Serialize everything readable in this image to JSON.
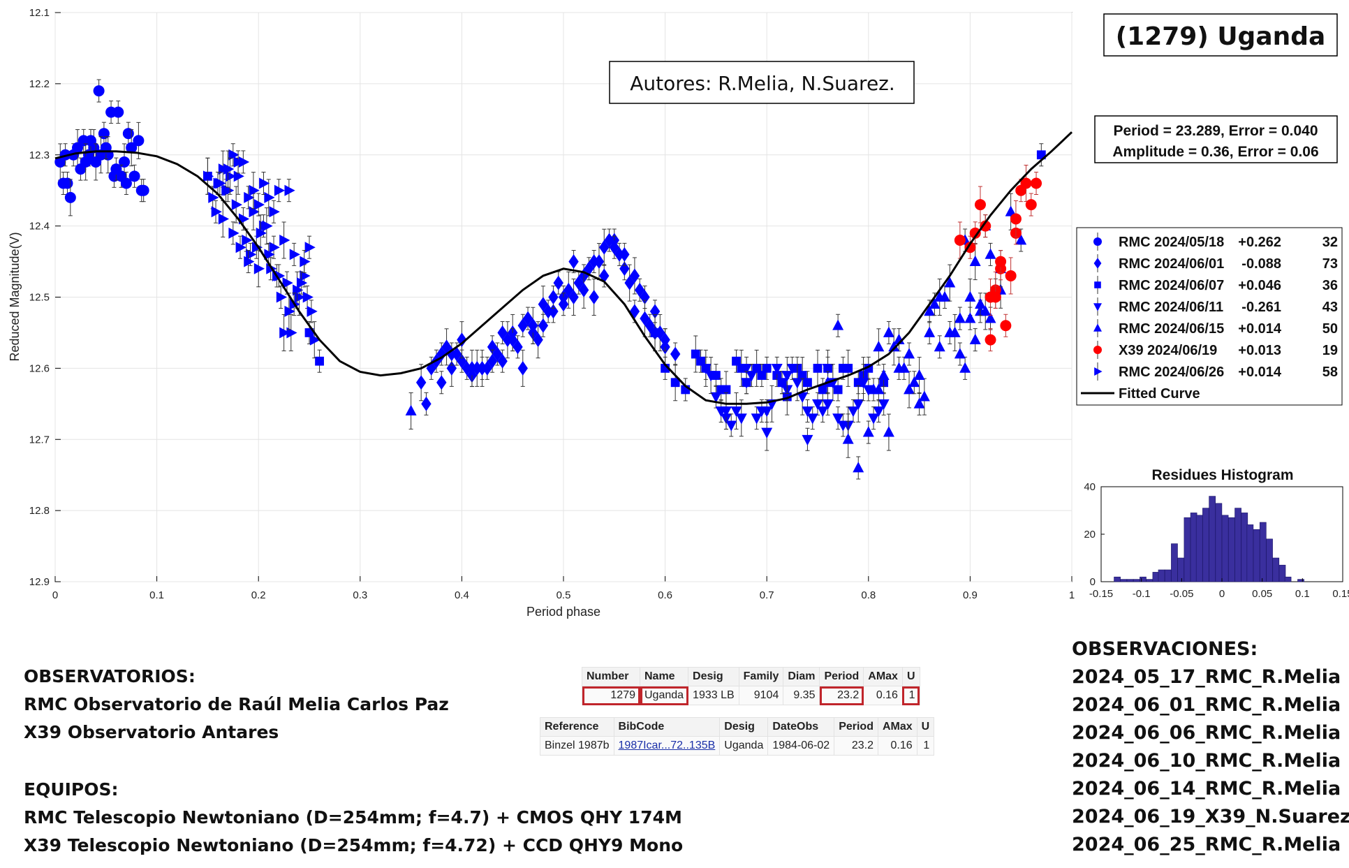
{
  "title": "(1279) Uganda",
  "authors": "Autores: R.Melia, N.Suarez.",
  "period_box": {
    "line1": "Period =  23.289, Error = 0.040",
    "line2": "Amplitude = 0.36, Error = 0.06"
  },
  "legend": [
    {
      "label": "RMC 2024/05/18",
      "offset": "+0.262",
      "count": "32",
      "marker": "circle",
      "color": "#0000ff"
    },
    {
      "label": "RMC 2024/06/01",
      "offset": "-0.088",
      "count": "73",
      "marker": "diamond",
      "color": "#0000ff"
    },
    {
      "label": "RMC 2024/06/07",
      "offset": "+0.046",
      "count": "36",
      "marker": "square",
      "color": "#0000ff"
    },
    {
      "label": "RMC 2024/06/11",
      "offset": "-0.261",
      "count": "43",
      "marker": "triangle-down",
      "color": "#0000ff"
    },
    {
      "label": "RMC 2024/06/15",
      "offset": "+0.014",
      "count": "50",
      "marker": "triangle-up",
      "color": "#0000ff"
    },
    {
      "label": "X39 2024/06/19",
      "offset": "+0.013",
      "count": "19",
      "marker": "circle",
      "color": "#ff0000"
    },
    {
      "label": "RMC 2024/06/26",
      "offset": "+0.014",
      "count": "58",
      "marker": "triangle-right",
      "color": "#0000ff"
    },
    {
      "label": "Fitted Curve",
      "offset": "",
      "count": "",
      "marker": "line",
      "color": "#000000"
    }
  ],
  "chart_data": [
    {
      "type": "scatter",
      "title": "",
      "xlabel": "Period phase",
      "ylabel": "Reduced Magnitude(V)",
      "xlim": [
        0,
        1
      ],
      "ylim": [
        12.1,
        12.9
      ],
      "y_reversed": true,
      "grid": true,
      "legend_position": "right",
      "x_ticks": [
        "0",
        "0.1",
        "0.2",
        "0.3",
        "0.4",
        "0.5",
        "0.6",
        "0.7",
        "0.8",
        "0.9",
        "1"
      ],
      "y_ticks": [
        "12.1",
        "12.2",
        "12.3",
        "12.4",
        "12.5",
        "12.6",
        "12.7",
        "12.8",
        "12.9"
      ],
      "fitted_curve": {
        "name": "Fitted Curve",
        "x": [
          0,
          0.02,
          0.04,
          0.06,
          0.08,
          0.1,
          0.12,
          0.14,
          0.16,
          0.18,
          0.2,
          0.22,
          0.24,
          0.26,
          0.28,
          0.3,
          0.32,
          0.34,
          0.36,
          0.38,
          0.4,
          0.42,
          0.44,
          0.46,
          0.48,
          0.5,
          0.52,
          0.54,
          0.56,
          0.58,
          0.6,
          0.62,
          0.64,
          0.66,
          0.68,
          0.7,
          0.72,
          0.74,
          0.76,
          0.78,
          0.8,
          0.82,
          0.84,
          0.86,
          0.88,
          0.9,
          0.92,
          0.94,
          0.96,
          0.98,
          1.0
        ],
        "y": [
          12.305,
          12.298,
          12.295,
          12.295,
          12.297,
          12.302,
          12.313,
          12.33,
          12.355,
          12.39,
          12.43,
          12.475,
          12.52,
          12.56,
          12.59,
          12.605,
          12.61,
          12.607,
          12.6,
          12.585,
          12.565,
          12.54,
          12.515,
          12.49,
          12.47,
          12.46,
          12.465,
          12.478,
          12.51,
          12.555,
          12.595,
          12.625,
          12.645,
          12.65,
          12.65,
          12.648,
          12.642,
          12.63,
          12.62,
          12.61,
          12.598,
          12.58,
          12.55,
          12.51,
          12.47,
          12.425,
          12.385,
          12.35,
          12.32,
          12.295,
          12.268
        ]
      },
      "series": [
        {
          "name": "RMC 2024/05/18",
          "x": [
            0.005,
            0.012,
            0.018,
            0.022,
            0.028,
            0.033,
            0.038,
            0.043,
            0.048,
            0.052,
            0.058,
            0.062,
            0.068,
            0.072,
            0.078,
            0.082,
            0.087,
            0.008,
            0.015,
            0.025,
            0.035,
            0.045,
            0.055,
            0.065,
            0.075,
            0.085,
            0.01,
            0.03,
            0.05,
            0.07,
            0.04,
            0.06
          ],
          "y": [
            12.31,
            12.34,
            12.3,
            12.29,
            12.28,
            12.3,
            12.29,
            12.21,
            12.27,
            12.3,
            12.33,
            12.24,
            12.31,
            12.27,
            12.33,
            12.28,
            12.35,
            12.34,
            12.36,
            12.32,
            12.28,
            12.3,
            12.24,
            12.33,
            12.29,
            12.35,
            12.3,
            12.31,
            12.29,
            12.34,
            12.31,
            12.32
          ]
        },
        {
          "name": "RMC 2024/06/01",
          "x": [
            0.36,
            0.37,
            0.38,
            0.39,
            0.4,
            0.41,
            0.42,
            0.43,
            0.44,
            0.45,
            0.46,
            0.47,
            0.48,
            0.49,
            0.5,
            0.51,
            0.52,
            0.53,
            0.54,
            0.55,
            0.56,
            0.57,
            0.58,
            0.59,
            0.6,
            0.365,
            0.375,
            0.385,
            0.395,
            0.405,
            0.415,
            0.425,
            0.435,
            0.445,
            0.455,
            0.465,
            0.475,
            0.485,
            0.495,
            0.505,
            0.515,
            0.525,
            0.535,
            0.545,
            0.555,
            0.565,
            0.575,
            0.585,
            0.595,
            0.61,
            0.38,
            0.4,
            0.42,
            0.44,
            0.46,
            0.48,
            0.5,
            0.52,
            0.54,
            0.56,
            0.58,
            0.6,
            0.39,
            0.41,
            0.43,
            0.45,
            0.47,
            0.49,
            0.51,
            0.53,
            0.55,
            0.57,
            0.59
          ],
          "y": [
            12.62,
            12.6,
            12.58,
            12.6,
            12.59,
            12.61,
            12.6,
            12.57,
            12.59,
            12.55,
            12.54,
            12.55,
            12.51,
            12.52,
            12.5,
            12.5,
            12.47,
            12.45,
            12.43,
            12.42,
            12.46,
            12.47,
            12.5,
            12.52,
            12.57,
            12.65,
            12.59,
            12.57,
            12.58,
            12.6,
            12.6,
            12.6,
            12.58,
            12.56,
            12.57,
            12.53,
            12.56,
            12.52,
            12.48,
            12.49,
            12.48,
            12.46,
            12.45,
            12.42,
            12.44,
            12.48,
            12.49,
            12.54,
            12.55,
            12.58,
            12.62,
            12.56,
            12.6,
            12.55,
            12.6,
            12.54,
            12.51,
            12.49,
            12.47,
            12.44,
            12.53,
            12.56,
            12.58,
            12.6,
            12.59,
            12.56,
            12.54,
            12.5,
            12.45,
            12.5,
            12.43,
            12.52,
            12.55
          ]
        },
        {
          "name": "RMC 2024/06/07",
          "x": [
            0.15,
            0.25,
            0.26,
            0.59,
            0.6,
            0.62,
            0.63,
            0.64,
            0.65,
            0.66,
            0.67,
            0.68,
            0.69,
            0.7,
            0.71,
            0.72,
            0.73,
            0.74,
            0.75,
            0.76,
            0.77,
            0.78,
            0.79,
            0.8,
            0.61,
            0.635,
            0.655,
            0.675,
            0.695,
            0.715,
            0.735,
            0.755,
            0.775,
            0.795,
            0.815,
            0.97
          ],
          "y": [
            12.33,
            12.55,
            12.59,
            12.55,
            12.6,
            12.63,
            12.58,
            12.6,
            12.61,
            12.63,
            12.59,
            12.62,
            12.6,
            12.6,
            12.61,
            12.64,
            12.6,
            12.62,
            12.6,
            12.6,
            12.63,
            12.6,
            12.62,
            12.6,
            12.62,
            12.59,
            12.63,
            12.6,
            12.61,
            12.62,
            12.61,
            12.63,
            12.6,
            12.61,
            12.62,
            12.3
          ]
        },
        {
          "name": "RMC 2024/06/11",
          "x": [
            0.64,
            0.65,
            0.66,
            0.67,
            0.68,
            0.69,
            0.7,
            0.71,
            0.72,
            0.73,
            0.74,
            0.75,
            0.76,
            0.77,
            0.78,
            0.79,
            0.8,
            0.81,
            0.645,
            0.655,
            0.665,
            0.675,
            0.685,
            0.695,
            0.705,
            0.715,
            0.725,
            0.735,
            0.745,
            0.755,
            0.765,
            0.775,
            0.785,
            0.795,
            0.805,
            0.815,
            0.66,
            0.68,
            0.7,
            0.72,
            0.74,
            0.76,
            0.78
          ],
          "y": [
            12.6,
            12.64,
            12.67,
            12.66,
            12.6,
            12.67,
            12.69,
            12.6,
            12.63,
            12.62,
            12.7,
            12.65,
            12.6,
            12.67,
            12.68,
            12.65,
            12.63,
            12.66,
            12.61,
            12.66,
            12.68,
            12.67,
            12.61,
            12.66,
            12.65,
            12.62,
            12.6,
            12.64,
            12.67,
            12.66,
            12.62,
            12.68,
            12.66,
            12.62,
            12.67,
            12.65,
            12.66,
            12.62,
            12.66,
            12.61,
            12.66,
            12.65,
            12.68
          ]
        },
        {
          "name": "RMC 2024/06/15",
          "x": [
            0.35,
            0.77,
            0.8,
            0.81,
            0.82,
            0.83,
            0.84,
            0.85,
            0.86,
            0.87,
            0.88,
            0.89,
            0.9,
            0.91,
            0.92,
            0.93,
            0.79,
            0.815,
            0.825,
            0.835,
            0.845,
            0.855,
            0.865,
            0.875,
            0.885,
            0.895,
            0.905,
            0.915,
            0.925,
            0.805,
            0.82,
            0.84,
            0.86,
            0.88,
            0.9,
            0.92,
            0.94,
            0.89,
            0.91,
            0.93,
            0.95,
            0.87,
            0.85,
            0.83,
            0.81,
            0.78,
            0.76,
            0.895,
            0.905,
            0.915
          ],
          "y": [
            12.66,
            12.54,
            12.69,
            12.57,
            12.55,
            12.56,
            12.63,
            12.65,
            12.52,
            12.5,
            12.55,
            12.53,
            12.5,
            12.52,
            12.53,
            12.49,
            12.74,
            12.61,
            12.57,
            12.6,
            12.62,
            12.64,
            12.51,
            12.5,
            12.55,
            12.6,
            12.56,
            12.52,
            12.49,
            12.63,
            12.69,
            12.58,
            12.55,
            12.48,
            12.53,
            12.44,
            12.38,
            12.58,
            12.51,
            12.46,
            12.42,
            12.57,
            12.61,
            12.6,
            12.63,
            12.7,
            12.62,
            12.42,
            12.45,
            12.4
          ]
        },
        {
          "name": "X39 2024/06/19",
          "x": [
            0.89,
            0.9,
            0.905,
            0.91,
            0.915,
            0.92,
            0.925,
            0.93,
            0.935,
            0.94,
            0.945,
            0.95,
            0.955,
            0.96,
            0.965,
            0.92,
            0.93,
            0.925,
            0.945
          ],
          "y": [
            12.42,
            12.43,
            12.41,
            12.37,
            12.4,
            12.56,
            12.49,
            12.46,
            12.54,
            12.47,
            12.41,
            12.35,
            12.34,
            12.37,
            12.34,
            12.5,
            12.45,
            12.5,
            12.39
          ]
        },
        {
          "name": "RMC 2024/06/26",
          "x": [
            0.15,
            0.155,
            0.16,
            0.165,
            0.17,
            0.175,
            0.18,
            0.185,
            0.19,
            0.195,
            0.2,
            0.205,
            0.21,
            0.215,
            0.22,
            0.225,
            0.23,
            0.235,
            0.24,
            0.245,
            0.25,
            0.255,
            0.158,
            0.168,
            0.178,
            0.188,
            0.198,
            0.208,
            0.218,
            0.228,
            0.238,
            0.248,
            0.162,
            0.172,
            0.182,
            0.192,
            0.202,
            0.212,
            0.222,
            0.232,
            0.242,
            0.252,
            0.165,
            0.175,
            0.185,
            0.195,
            0.205,
            0.215,
            0.225,
            0.235,
            0.245,
            0.17,
            0.18,
            0.19,
            0.2,
            0.21,
            0.22,
            0.23
          ],
          "y": [
            12.33,
            12.36,
            12.34,
            12.32,
            12.35,
            12.3,
            12.33,
            12.31,
            12.36,
            12.38,
            12.37,
            12.4,
            12.36,
            12.38,
            12.35,
            12.42,
            12.35,
            12.44,
            12.5,
            12.47,
            12.43,
            12.56,
            12.38,
            12.35,
            12.37,
            12.42,
            12.43,
            12.4,
            12.47,
            12.48,
            12.49,
            12.5,
            12.34,
            12.33,
            12.43,
            12.44,
            12.41,
            12.46,
            12.5,
            12.55,
            12.48,
            12.52,
            12.39,
            12.41,
            12.39,
            12.35,
            12.34,
            12.43,
            12.55,
            12.51,
            12.45,
            12.32,
            12.31,
            12.45,
            12.46,
            12.44,
            12.47,
            12.52
          ]
        }
      ]
    },
    {
      "type": "bar",
      "title": "Residues Histogram",
      "xlim": [
        -0.15,
        0.15
      ],
      "ylim": [
        0,
        40
      ],
      "x_ticks": [
        "-0.15",
        "-0.1",
        "-0.05",
        "0",
        "0.05",
        "0.1",
        "0.15"
      ],
      "y_ticks": [
        "0",
        "20",
        "40"
      ],
      "bar_color": "#3a2f9e",
      "bin_width": 0.00785,
      "bin_centers": [
        -0.13,
        -0.122,
        -0.114,
        -0.106,
        -0.098,
        -0.09,
        -0.082,
        -0.075,
        -0.067,
        -0.059,
        -0.051,
        -0.043,
        -0.035,
        -0.028,
        -0.02,
        -0.012,
        -0.004,
        0.004,
        0.012,
        0.02,
        0.028,
        0.035,
        0.043,
        0.051,
        0.059,
        0.067,
        0.075,
        0.082,
        0.09,
        0.098,
        0.106,
        0.114
      ],
      "values": [
        2,
        1,
        1,
        1,
        2,
        1,
        4,
        5,
        5,
        16,
        10,
        27,
        29,
        28,
        31,
        36,
        33,
        28,
        27,
        31,
        29,
        24,
        22,
        25,
        18,
        10,
        7,
        2,
        0,
        1,
        0,
        0
      ]
    }
  ],
  "left_text": {
    "obs_title": "OBSERVATORIOS:",
    "obs1": "RMC Observatorio de Raúl Melia Carlos Paz",
    "obs2": "X39 Observatorio Antares",
    "eq_title": "EQUIPOS:",
    "eq1": "RMC Telescopio Newtoniano (D=254mm; f=4.7) + CMOS QHY 174M",
    "eq2": "X39 Telescopio Newtoniano (D=254mm; f=4.72) + CCD QHY9 Mono"
  },
  "right_text": {
    "title": "OBSERVACIONES:",
    "items": [
      "2024_05_17_RMC_R.Melia",
      "2024_06_01_RMC_R.Melia",
      "2024_06_06_RMC_R.Melia",
      "2024_06_10_RMC_R.Melia",
      "2024_06_14_RMC_R.Melia",
      "2024_06_19_X39_N.Suarez",
      "2024_06_25_RMC_R.Melia"
    ]
  },
  "table1": {
    "headers": [
      "Number",
      "Name",
      "Desig",
      "Family",
      "Diam",
      "Period",
      "AMax",
      "U"
    ],
    "row": [
      "1279",
      "Uganda",
      "1933 LB",
      "9104",
      "9.35",
      "23.2",
      "0.16",
      "1"
    ]
  },
  "table2": {
    "headers": [
      "Reference",
      "BibCode",
      "Desig",
      "DateObs",
      "Period",
      "AMax",
      "U"
    ],
    "row": [
      "Binzel 1987b",
      "1987Icar...72..135B",
      "Uganda",
      "1984-06-02",
      "23.2",
      "0.16",
      "1"
    ]
  }
}
